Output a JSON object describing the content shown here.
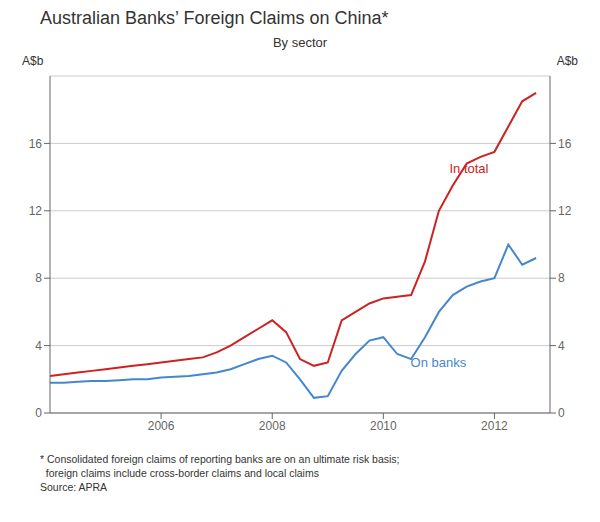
{
  "chart_data": {
    "type": "line",
    "title": "Australian Banks’ Foreign Claims on China*",
    "subtitle": "By sector",
    "ylabel": "A$b",
    "y2label": "A$b",
    "footnote": "* Consolidated foreign claims of reporting banks are on an ultimate risk basis;\n  foreign claims include cross-border claims and local claims\nSource: APRA",
    "x": [
      2004.0,
      2004.25,
      2004.5,
      2004.75,
      2005.0,
      2005.25,
      2005.5,
      2005.75,
      2006.0,
      2006.25,
      2006.5,
      2006.75,
      2007.0,
      2007.25,
      2007.5,
      2007.75,
      2008.0,
      2008.25,
      2008.5,
      2008.75,
      2009.0,
      2009.25,
      2009.5,
      2009.75,
      2010.0,
      2010.25,
      2010.5,
      2010.75,
      2011.0,
      2011.25,
      2011.5,
      2011.75,
      2012.0,
      2012.25,
      2012.5,
      2012.75
    ],
    "series": [
      {
        "name": "In total",
        "color": "#cc2222",
        "values": [
          2.2,
          2.3,
          2.4,
          2.5,
          2.6,
          2.7,
          2.8,
          2.9,
          3.0,
          3.1,
          3.2,
          3.3,
          3.6,
          4.0,
          4.5,
          5.0,
          5.5,
          4.8,
          3.2,
          2.8,
          3.0,
          5.5,
          6.0,
          6.5,
          6.8,
          6.9,
          7.0,
          9.0,
          12.0,
          13.5,
          14.8,
          15.2,
          15.5,
          17.0,
          18.5,
          19.0
        ]
      },
      {
        "name": "On banks",
        "color": "#4488cc",
        "values": [
          1.8,
          1.8,
          1.85,
          1.9,
          1.9,
          1.95,
          2.0,
          2.0,
          2.1,
          2.15,
          2.2,
          2.3,
          2.4,
          2.6,
          2.9,
          3.2,
          3.4,
          3.0,
          2.0,
          0.9,
          1.0,
          2.5,
          3.5,
          4.3,
          4.5,
          3.5,
          3.2,
          4.5,
          6.0,
          7.0,
          7.5,
          7.8,
          8.0,
          10.0,
          8.8,
          9.2
        ]
      }
    ],
    "xlim": [
      2004.0,
      2013.0
    ],
    "xticks": [
      2006,
      2008,
      2010,
      2012
    ],
    "ylim": [
      0,
      20
    ],
    "yticks": [
      0,
      4,
      8,
      12,
      16
    ],
    "y2lim": [
      0,
      20
    ],
    "y2ticks": [
      0,
      4,
      8,
      12,
      16
    ],
    "grid": "y",
    "annotations": [
      {
        "text": "In total",
        "x": 2011.1,
        "y": 14.5,
        "color": "#cc2222"
      },
      {
        "text": "On banks",
        "x": 2010.4,
        "y": 3.0,
        "color": "#4488cc"
      }
    ]
  }
}
